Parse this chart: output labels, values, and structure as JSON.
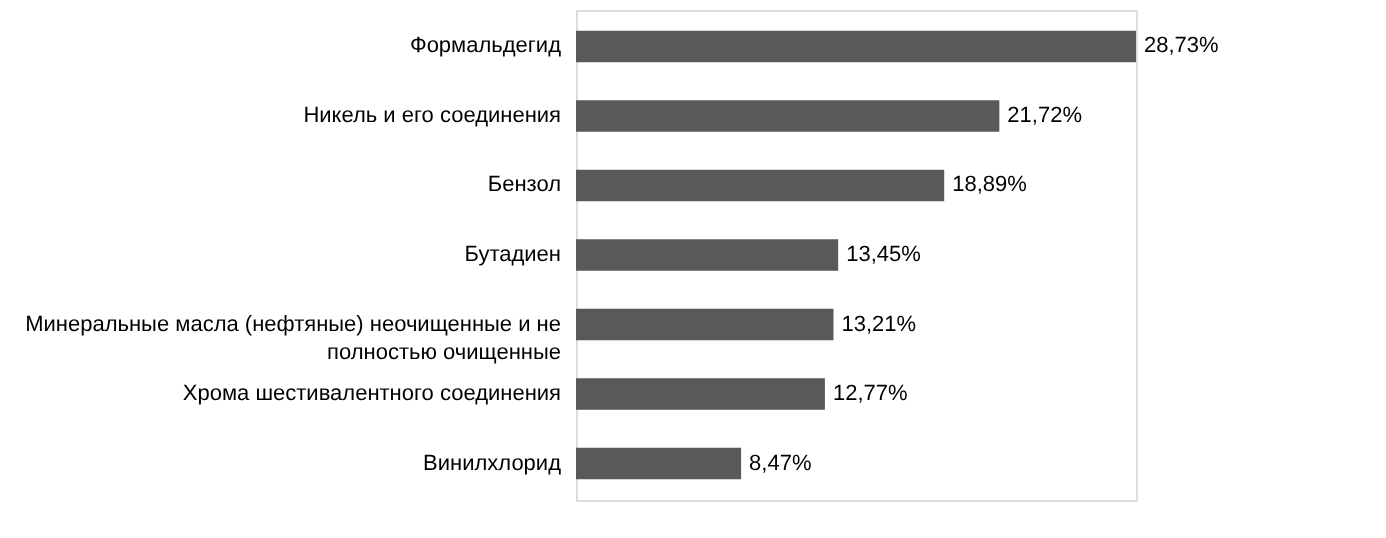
{
  "chart_data": {
    "type": "bar",
    "orientation": "horizontal",
    "categories": [
      "Формальдегид",
      "Никель и его соединения ",
      "Бензол",
      "Бутадиен",
      "Минеральные масла (нефтяные)  неочищенные  и не полностью очищенные",
      "Хрома шестивалентного  соединения ",
      "Винилхлорид"
    ],
    "values": [
      28.73,
      21.72,
      18.89,
      13.45,
      13.21,
      12.77,
      8.47
    ],
    "value_labels": [
      "28,73%",
      "21,72%",
      "18,89%",
      "13,45%",
      "13,21%",
      "12,77%",
      "8,47%"
    ],
    "color": "#595959",
    "grid": false
  }
}
